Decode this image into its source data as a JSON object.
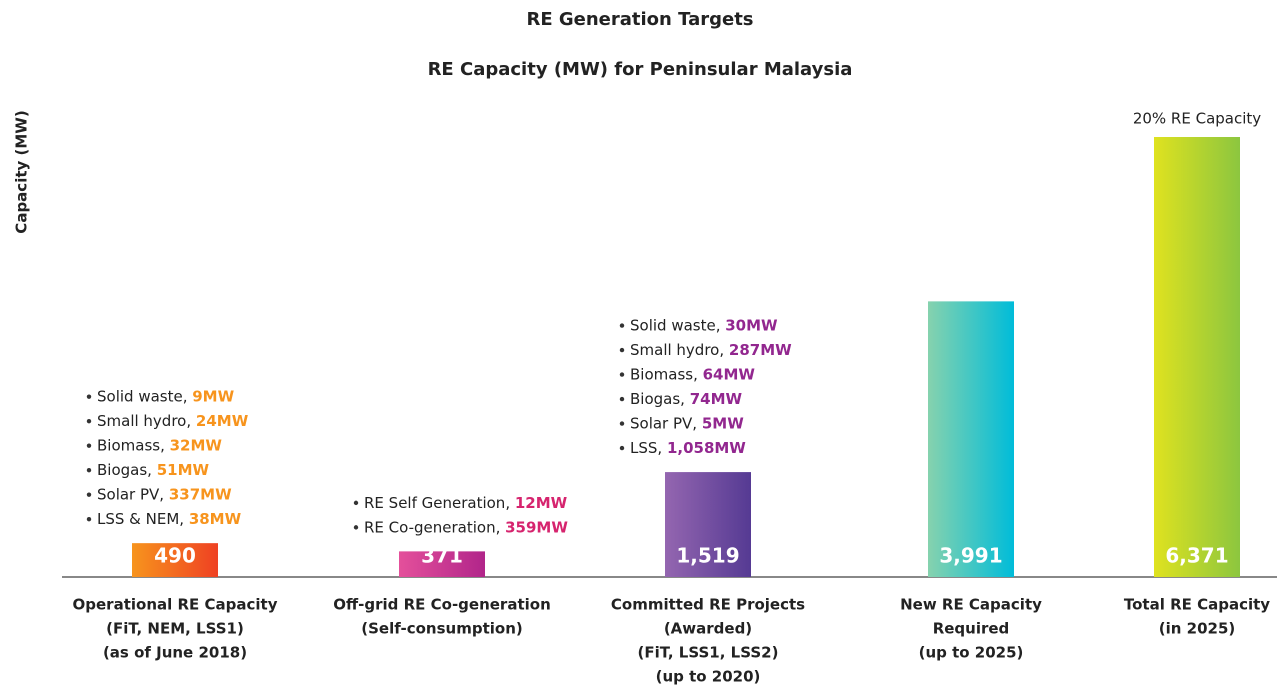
{
  "chart_data": {
    "type": "bar",
    "title": "RE Generation Targets",
    "subtitle": "RE Capacity (MW) for Peninsular Malaysia",
    "y_label": "Capacity (MW)",
    "categories": [
      [
        "Operational RE Capacity",
        "(FiT, NEM, LSS1)",
        "(as of June 2018)"
      ],
      [
        "Off-grid RE Co-generation",
        "(Self-consumption)"
      ],
      [
        "Committed RE Projects",
        "(Awarded)",
        "(FiT, LSS1, LSS2)",
        "(up to 2020)"
      ],
      [
        "New RE Capacity",
        "Required",
        "(up to 2025)"
      ],
      [
        "Total RE Capacity",
        "(in 2025)"
      ]
    ],
    "values": [
      490,
      371,
      1519,
      3991,
      6371
    ],
    "value_labels": [
      "490",
      "371",
      "1,519",
      "3,991",
      "6,371"
    ],
    "colors": [
      [
        "#f7941d",
        "#ef4123"
      ],
      [
        "#e4509b",
        "#b1258a"
      ],
      [
        "#9466b0",
        "#553a93"
      ],
      [
        "#86d2ae",
        "#00bcd9"
      ],
      [
        "#dfe21f",
        "#8cc63f"
      ]
    ],
    "annotation_colors": [
      "#f7941d",
      "#d6246e",
      "#92278f",
      null,
      null
    ],
    "annotations": [
      [
        {
          "label": "Solid waste, ",
          "value": "9MW"
        },
        {
          "label": "Small hydro, ",
          "value": "24MW"
        },
        {
          "label": "Biomass, ",
          "value": "32MW"
        },
        {
          "label": "Biogas, ",
          "value": "51MW"
        },
        {
          "label": "Solar PV, ",
          "value": "337MW"
        },
        {
          "label": "LSS & NEM, ",
          "value": "38MW"
        }
      ],
      [
        {
          "label": "RE Self Generation, ",
          "value": "12MW"
        },
        {
          "label": "RE Co-generation, ",
          "value": "359MW"
        }
      ],
      [
        {
          "label": "Solid waste, ",
          "value": "30MW"
        },
        {
          "label": "Small hydro, ",
          "value": "287MW"
        },
        {
          "label": "Biomass, ",
          "value": "64MW"
        },
        {
          "label": "Biogas, ",
          "value": "74MW"
        },
        {
          "label": "Solar PV, ",
          "value": "5MW"
        },
        {
          "label": "LSS, ",
          "value": "1,058MW"
        }
      ],
      [],
      []
    ],
    "top_note": "20% RE Capacity"
  }
}
